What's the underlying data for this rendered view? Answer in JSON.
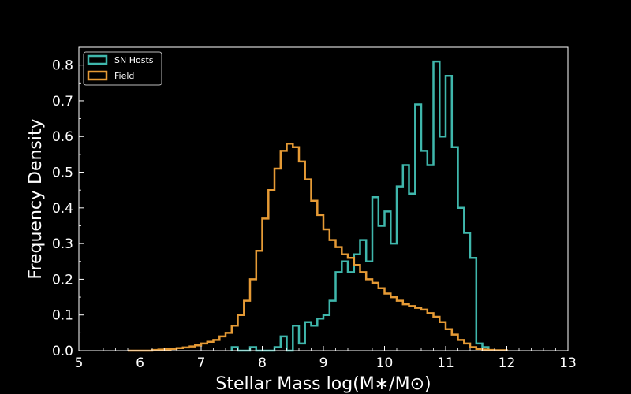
{
  "chart_data": {
    "type": "histogram",
    "xlabel": "Stellar Mass log(M∗/M⊙)",
    "ylabel": "Frequency Density",
    "xlim": [
      5,
      13
    ],
    "ylim": [
      0,
      0.85
    ],
    "xticks": [
      "5",
      "6",
      "7",
      "8",
      "9",
      "10",
      "11",
      "12",
      "13"
    ],
    "yticks": [
      "0.0",
      "0.1",
      "0.2",
      "0.3",
      "0.4",
      "0.5",
      "0.6",
      "0.7",
      "0.8"
    ],
    "grid": false,
    "legend_position": "top-left",
    "series": [
      {
        "name": "SN Hosts",
        "color": "#3fb7ac",
        "bin_edges": [
          7.5,
          7.6,
          7.7,
          7.8,
          7.9,
          8.0,
          8.1,
          8.2,
          8.3,
          8.4,
          8.5,
          8.6,
          8.7,
          8.8,
          8.9,
          9.0,
          9.1,
          9.2,
          9.3,
          9.4,
          9.5,
          9.6,
          9.7,
          9.8,
          9.9,
          10.0,
          10.1,
          10.2,
          10.3,
          10.4,
          10.5,
          10.6,
          10.7,
          10.8,
          10.9,
          11.0,
          11.1,
          11.2,
          11.3,
          11.4,
          11.5,
          11.6,
          11.7
        ],
        "density": [
          0.01,
          0.0,
          0.0,
          0.01,
          0.0,
          0.0,
          0.0,
          0.01,
          0.04,
          0.0,
          0.07,
          0.02,
          0.08,
          0.07,
          0.09,
          0.1,
          0.14,
          0.22,
          0.25,
          0.22,
          0.27,
          0.31,
          0.25,
          0.43,
          0.35,
          0.39,
          0.3,
          0.46,
          0.52,
          0.44,
          0.69,
          0.56,
          0.52,
          0.81,
          0.6,
          0.77,
          0.57,
          0.4,
          0.33,
          0.26,
          0.02,
          0.01
        ]
      },
      {
        "name": "Field",
        "color": "#e59a35",
        "bin_edges": [
          5.8,
          5.9,
          6.0,
          6.1,
          6.2,
          6.3,
          6.4,
          6.5,
          6.6,
          6.7,
          6.8,
          6.9,
          7.0,
          7.1,
          7.2,
          7.3,
          7.4,
          7.5,
          7.6,
          7.7,
          7.8,
          7.9,
          8.0,
          8.1,
          8.2,
          8.3,
          8.4,
          8.5,
          8.6,
          8.7,
          8.8,
          8.9,
          9.0,
          9.1,
          9.2,
          9.3,
          9.4,
          9.5,
          9.6,
          9.7,
          9.8,
          9.9,
          10.0,
          10.1,
          10.2,
          10.3,
          10.4,
          10.5,
          10.6,
          10.7,
          10.8,
          10.9,
          11.0,
          11.1,
          11.2,
          11.3,
          11.4,
          11.5,
          11.6,
          11.7,
          11.8,
          11.9,
          12.0
        ],
        "density": [
          0.0,
          0.0,
          0.0,
          0.0,
          0.002,
          0.003,
          0.004,
          0.005,
          0.007,
          0.009,
          0.012,
          0.015,
          0.02,
          0.025,
          0.03,
          0.04,
          0.05,
          0.07,
          0.1,
          0.14,
          0.2,
          0.28,
          0.37,
          0.45,
          0.51,
          0.56,
          0.58,
          0.57,
          0.53,
          0.48,
          0.42,
          0.38,
          0.34,
          0.31,
          0.29,
          0.27,
          0.26,
          0.24,
          0.22,
          0.2,
          0.19,
          0.175,
          0.16,
          0.15,
          0.14,
          0.13,
          0.125,
          0.12,
          0.115,
          0.105,
          0.095,
          0.08,
          0.06,
          0.045,
          0.03,
          0.02,
          0.01,
          0.005,
          0.003,
          0.002,
          0.001,
          0.001
        ]
      }
    ]
  }
}
